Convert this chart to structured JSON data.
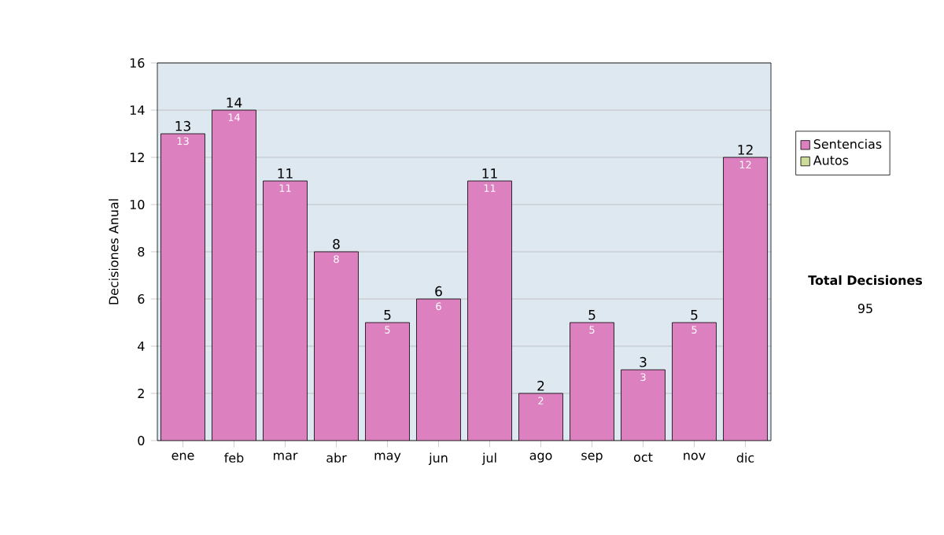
{
  "chart_data": {
    "type": "bar",
    "stacked": true,
    "ylabel": "Decisiones Anual",
    "categories": [
      "ene",
      "feb",
      "mar",
      "abr",
      "may",
      "jun",
      "jul",
      "ago",
      "sep",
      "oct",
      "nov",
      "dic"
    ],
    "series": [
      {
        "name": "Sentencias",
        "color": "#dd80c0",
        "values": [
          13,
          14,
          11,
          8,
          5,
          6,
          11,
          2,
          5,
          3,
          5,
          12
        ],
        "value_labels": [
          "13",
          "14",
          "11",
          "8",
          "5",
          "6",
          "11",
          "2",
          "5",
          "3",
          "5",
          "12"
        ]
      },
      {
        "name": "Autos",
        "color": "#ccdd99",
        "values": [
          0,
          0,
          0,
          0,
          0,
          0,
          0,
          0,
          0,
          0,
          0,
          0
        ]
      }
    ],
    "totals": [
      "13",
      "14",
      "11",
      "8",
      "5",
      "6",
      "11",
      "2",
      "5",
      "3",
      "5",
      "12"
    ],
    "ylim": [
      0,
      16
    ],
    "yticks": [
      0,
      2,
      4,
      6,
      8,
      10,
      12,
      14,
      16
    ],
    "grid": "y",
    "legend": "right",
    "annotations": [
      "Total Decisiones",
      "95"
    ]
  }
}
